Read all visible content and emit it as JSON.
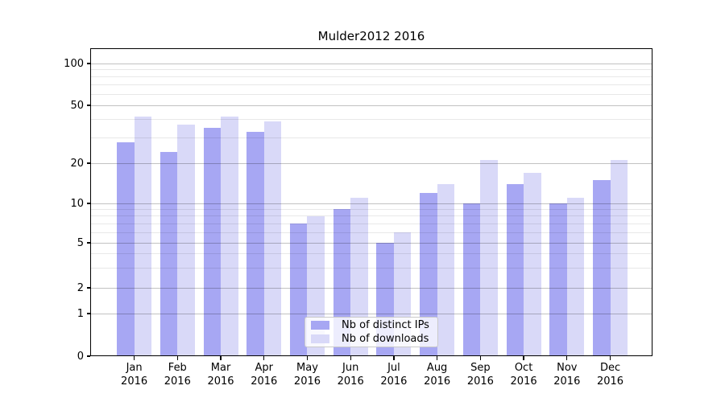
{
  "title": "Mulder2012 2016",
  "chart_data": {
    "type": "bar",
    "title": "Mulder2012 2016",
    "categories": [
      "Jan 2016",
      "Feb 2016",
      "Mar 2016",
      "Apr 2016",
      "May 2016",
      "Jun 2016",
      "Jul 2016",
      "Aug 2016",
      "Sep 2016",
      "Oct 2016",
      "Nov 2016",
      "Dec 2016"
    ],
    "series": [
      {
        "name": "Nb of distinct IPs",
        "color": "#a7a7f3",
        "values": [
          28,
          24,
          35,
          33,
          7,
          9,
          5,
          12,
          10,
          14,
          10,
          15
        ]
      },
      {
        "name": "Nb of downloads",
        "color": "#d9d9f8",
        "values": [
          42,
          37,
          42,
          39,
          8,
          11,
          6,
          14,
          21,
          17,
          11,
          21
        ]
      }
    ],
    "yscale": "symlog",
    "y_ticks": [
      100,
      50,
      20,
      10,
      5,
      2,
      1,
      0
    ],
    "y_minor_gridlines": [
      90,
      80,
      70,
      60,
      40,
      30,
      9,
      8,
      7,
      6,
      4,
      3
    ],
    "ylim": [
      0,
      130
    ],
    "grid": "horizontal major and minor",
    "legend_position": "lower center",
    "colors": {
      "major_grid": "rgba(0,0,0,0.24)",
      "minor_grid": "rgba(0,0,0,0.09)",
      "axis": "#000000",
      "background": "#ffffff"
    }
  }
}
